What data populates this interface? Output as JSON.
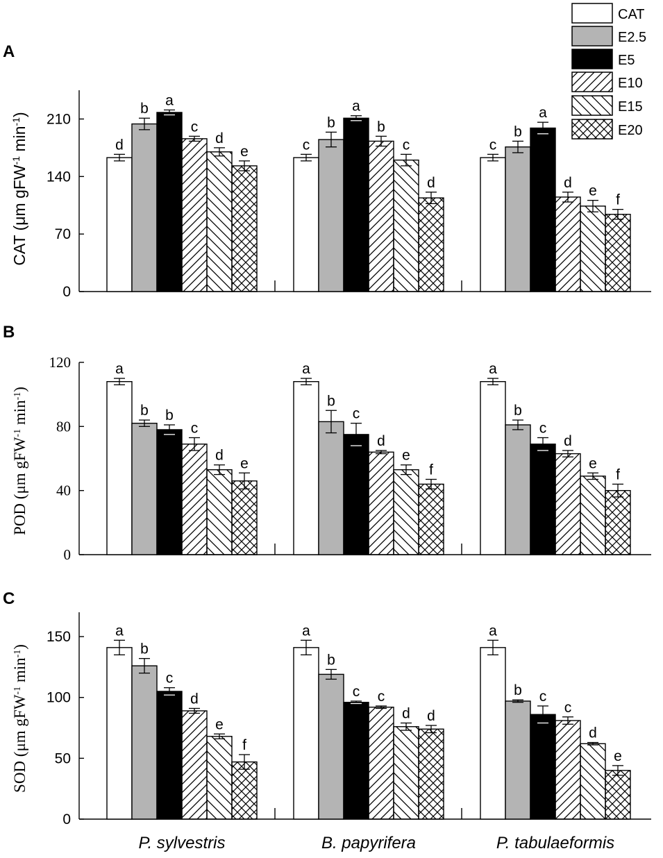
{
  "legend": [
    "CAT",
    "E2.5",
    "E5",
    "E10",
    "E15",
    "E20"
  ],
  "groups": [
    "P. sylvestris",
    "B. papyrifera",
    "P. tabulaeformis"
  ],
  "chart_data": [
    {
      "type": "bar",
      "panel_label": "A",
      "ylabel": {
        "main": "CAT (μm gFW",
        "sup1": "-1",
        "mid": " min",
        "sup2": "-1",
        "end": ")"
      },
      "ylim": [
        0,
        245
      ],
      "yticks": [
        0,
        70,
        140,
        210
      ],
      "categories": [
        "P. sylvestris",
        "B. papyrifera",
        "P. tabulaeformis"
      ],
      "series": [
        {
          "name": "CAT",
          "values": [
            163,
            163,
            163
          ],
          "errors": [
            4,
            4,
            4
          ],
          "letters": [
            "d",
            "c",
            "c"
          ]
        },
        {
          "name": "E2.5",
          "values": [
            204,
            185,
            176
          ],
          "errors": [
            7,
            9,
            7
          ],
          "letters": [
            "b",
            "b",
            "b"
          ]
        },
        {
          "name": "E5",
          "values": [
            218,
            211,
            199
          ],
          "errors": [
            3,
            3,
            7
          ],
          "letters": [
            "a",
            "a",
            "a"
          ]
        },
        {
          "name": "E10",
          "values": [
            186,
            183,
            115
          ],
          "errors": [
            3,
            6,
            6
          ],
          "letters": [
            "c",
            "b",
            "d"
          ]
        },
        {
          "name": "E15",
          "values": [
            170,
            160,
            104
          ],
          "errors": [
            5,
            7,
            7
          ],
          "letters": [
            "d",
            "c",
            "e"
          ]
        },
        {
          "name": "E20",
          "values": [
            153,
            114,
            94
          ],
          "errors": [
            6,
            7,
            6
          ],
          "letters": [
            "e",
            "d",
            "f"
          ]
        }
      ]
    },
    {
      "type": "bar",
      "panel_label": "B",
      "ylabel": {
        "main": "POD (μm gFW",
        "sup1": "-1",
        "mid": " min",
        "sup2": "-1",
        "end": ")"
      },
      "ylim": [
        0,
        120
      ],
      "yticks": [
        0,
        40,
        80,
        120
      ],
      "categories": [
        "P. sylvestris",
        "B. papyrifera",
        "P. tabulaeformis"
      ],
      "series": [
        {
          "name": "CAT",
          "values": [
            108,
            108,
            108
          ],
          "errors": [
            2,
            2,
            2
          ],
          "letters": [
            "a",
            "a",
            "a"
          ]
        },
        {
          "name": "E2.5",
          "values": [
            82,
            83,
            81
          ],
          "errors": [
            2,
            7,
            3
          ],
          "letters": [
            "b",
            "b",
            "b"
          ]
        },
        {
          "name": "E5",
          "values": [
            78,
            75,
            69
          ],
          "errors": [
            3,
            7,
            4
          ],
          "letters": [
            "b",
            "c",
            "c"
          ]
        },
        {
          "name": "E10",
          "values": [
            69,
            64,
            63
          ],
          "errors": [
            4,
            1,
            2
          ],
          "letters": [
            "c",
            "d",
            "d"
          ]
        },
        {
          "name": "E15",
          "values": [
            53,
            53,
            49
          ],
          "errors": [
            3,
            3,
            2
          ],
          "letters": [
            "d",
            "e",
            "e"
          ]
        },
        {
          "name": "E20",
          "values": [
            46,
            44,
            40
          ],
          "errors": [
            5,
            3,
            4
          ],
          "letters": [
            "e",
            "f",
            "f"
          ]
        }
      ]
    },
    {
      "type": "bar",
      "panel_label": "C",
      "ylabel": {
        "main": "SOD (μm gFW",
        "sup1": "-1",
        "mid": " min",
        "sup2": "-1",
        "end": ")"
      },
      "ylim": [
        0,
        170
      ],
      "yticks": [
        0,
        50,
        100,
        150
      ],
      "categories": [
        "P. sylvestris",
        "B. papyrifera",
        "P. tabulaeformis"
      ],
      "series": [
        {
          "name": "CAT",
          "values": [
            141,
            141,
            141
          ],
          "errors": [
            6,
            6,
            6
          ],
          "letters": [
            "a",
            "a",
            "a"
          ]
        },
        {
          "name": "E2.5",
          "values": [
            126,
            119,
            97
          ],
          "errors": [
            6,
            4,
            1
          ],
          "letters": [
            "b",
            "b",
            "b"
          ]
        },
        {
          "name": "E5",
          "values": [
            105,
            96,
            86
          ],
          "errors": [
            3,
            1,
            7
          ],
          "letters": [
            "c",
            "c",
            "c"
          ]
        },
        {
          "name": "E10",
          "values": [
            89,
            92,
            81
          ],
          "errors": [
            2,
            1,
            3
          ],
          "letters": [
            "d",
            "c",
            "c"
          ]
        },
        {
          "name": "E15",
          "values": [
            68,
            76,
            62
          ],
          "errors": [
            2,
            3,
            1
          ],
          "letters": [
            "e",
            "d",
            "d"
          ]
        },
        {
          "name": "E20",
          "values": [
            47,
            74,
            40
          ],
          "errors": [
            6,
            3,
            4
          ],
          "letters": [
            "f",
            "d",
            "e"
          ]
        }
      ]
    }
  ]
}
